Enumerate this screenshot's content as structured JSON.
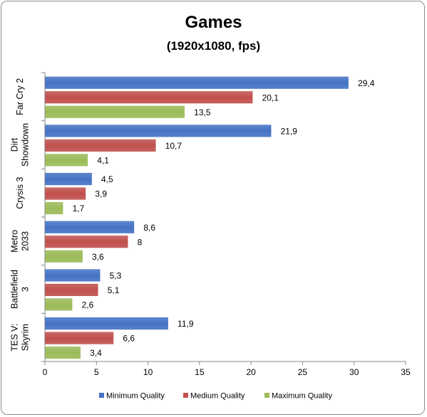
{
  "chart_data": {
    "type": "bar",
    "orientation": "horizontal",
    "title": "Games",
    "subtitle": "(1920x1080, fps)",
    "categories": [
      [
        "Far Cry 2"
      ],
      [
        "Dirt",
        "Showdown"
      ],
      [
        "Crysis 3"
      ],
      [
        "Metro",
        "2033"
      ],
      [
        "Battlefield",
        "3"
      ],
      [
        "TES V:",
        "Skyrim"
      ]
    ],
    "series": [
      {
        "name": "Minimum Quality",
        "color": "#4472c4",
        "values": [
          29.4,
          21.9,
          4.5,
          8.6,
          5.3,
          11.9
        ],
        "labels": [
          "29,4",
          "21,9",
          "4,5",
          "8,6",
          "5,3",
          "11,9"
        ]
      },
      {
        "name": "Medium Quality",
        "color": "#c0504d",
        "values": [
          20.1,
          10.7,
          3.9,
          8,
          5.1,
          6.6
        ],
        "labels": [
          "20,1",
          "10,7",
          "3,9",
          "8",
          "5,1",
          "6,6"
        ]
      },
      {
        "name": "Maximum Quality",
        "color": "#9bbb59",
        "values": [
          13.5,
          4.1,
          1.7,
          3.6,
          2.6,
          3.4
        ],
        "labels": [
          "13,5",
          "4,1",
          "1,7",
          "3,6",
          "2,6",
          "3,4"
        ]
      }
    ],
    "xlim": [
      0,
      35
    ],
    "xticks": [
      0,
      5,
      10,
      15,
      20,
      25,
      30,
      35
    ],
    "grid": false,
    "legend_position": "bottom"
  }
}
